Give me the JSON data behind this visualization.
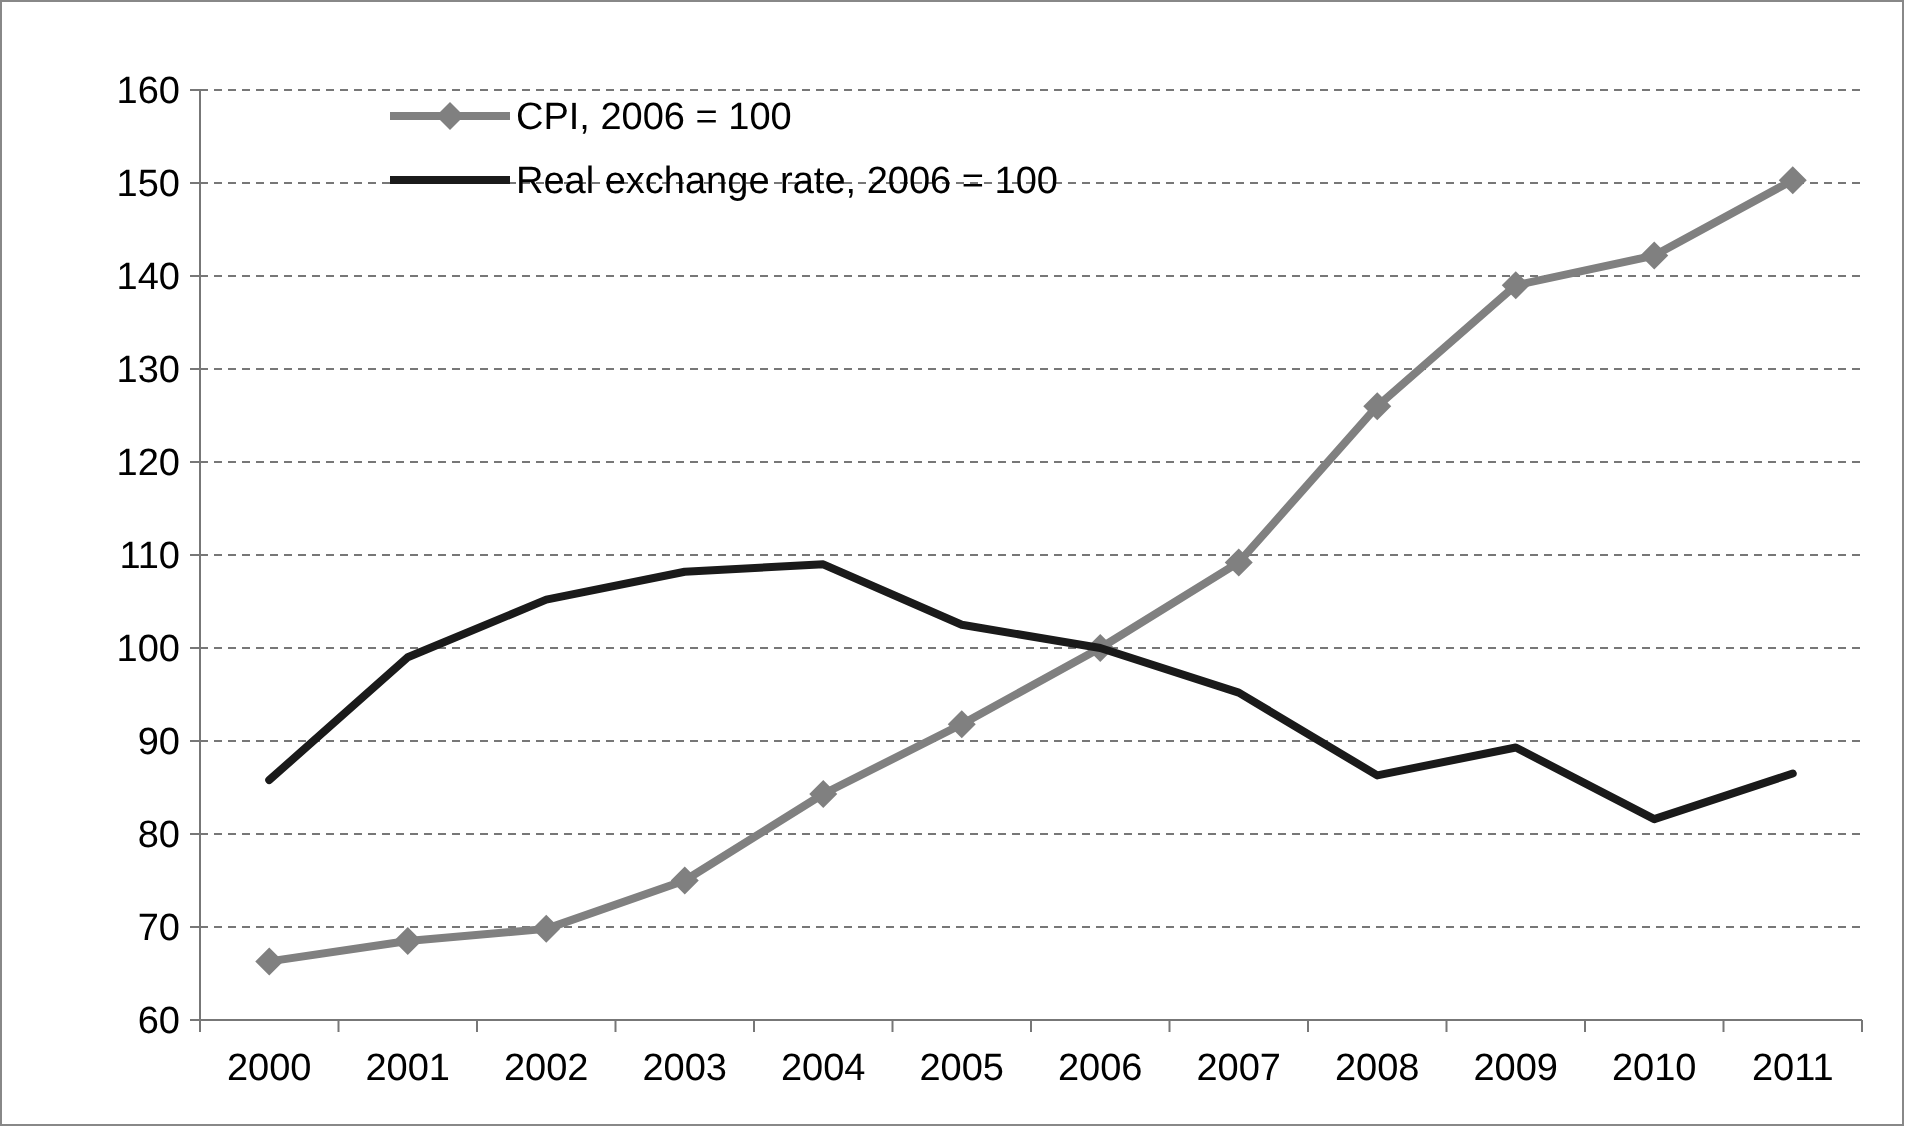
{
  "chart_data": {
    "type": "line",
    "categories": [
      "2000",
      "2001",
      "2002",
      "2003",
      "2004",
      "2005",
      "2006",
      "2007",
      "2008",
      "2009",
      "2010",
      "2011"
    ],
    "series": [
      {
        "name": "CPI, 2006 = 100",
        "color": "#808080",
        "marker": "diamond",
        "values": [
          66.3,
          68.5,
          69.8,
          75,
          84.3,
          91.8,
          100,
          109.2,
          126,
          139,
          142.2,
          150.3
        ]
      },
      {
        "name": "Real exchange rate, 2006 = 100",
        "color": "#1a1a1a",
        "marker": "none",
        "values": [
          85.8,
          99,
          105.2,
          108.2,
          109,
          102.5,
          100,
          95.2,
          86.3,
          89.3,
          81.6,
          86.5
        ]
      }
    ],
    "ylim": [
      60,
      160
    ],
    "yticks": [
      60,
      70,
      80,
      90,
      100,
      110,
      120,
      130,
      140,
      150,
      160
    ],
    "grid": "y",
    "legend": "top left",
    "line_style": "solid"
  }
}
